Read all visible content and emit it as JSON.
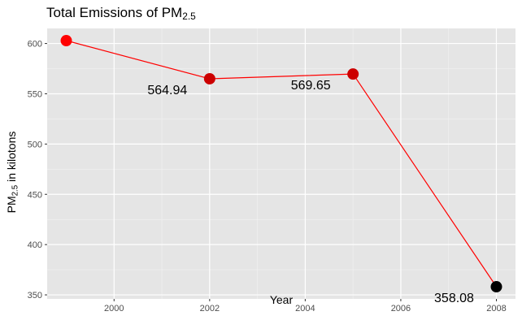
{
  "chart_data": {
    "type": "line",
    "title": {
      "main": "Total Emissions of PM",
      "sub": "2.5"
    },
    "ylabel": {
      "pre": "PM",
      "sub": "2.5",
      "post": " in kilotons"
    },
    "xlabel": "Year",
    "x": [
      1999,
      2002,
      2005,
      2008
    ],
    "values": [
      602.85,
      564.94,
      569.65,
      358.08
    ],
    "point_colors": [
      "#ff0000",
      "#cc0000",
      "#cc0000",
      "#000000"
    ],
    "line_color": "#ff0000",
    "data_labels": [
      {
        "x": 2002,
        "text": "564.94"
      },
      {
        "x": 2005,
        "text": "569.65"
      },
      {
        "x": 2008,
        "text": "358.08"
      }
    ],
    "xticks": [
      2000,
      2002,
      2004,
      2006,
      2008
    ],
    "yticks": [
      350,
      400,
      450,
      500,
      550,
      600
    ],
    "xlim": [
      1998.6,
      2008.4
    ],
    "ylim": [
      346,
      615
    ],
    "grid": true,
    "panel_color": "#e5e5e5"
  }
}
